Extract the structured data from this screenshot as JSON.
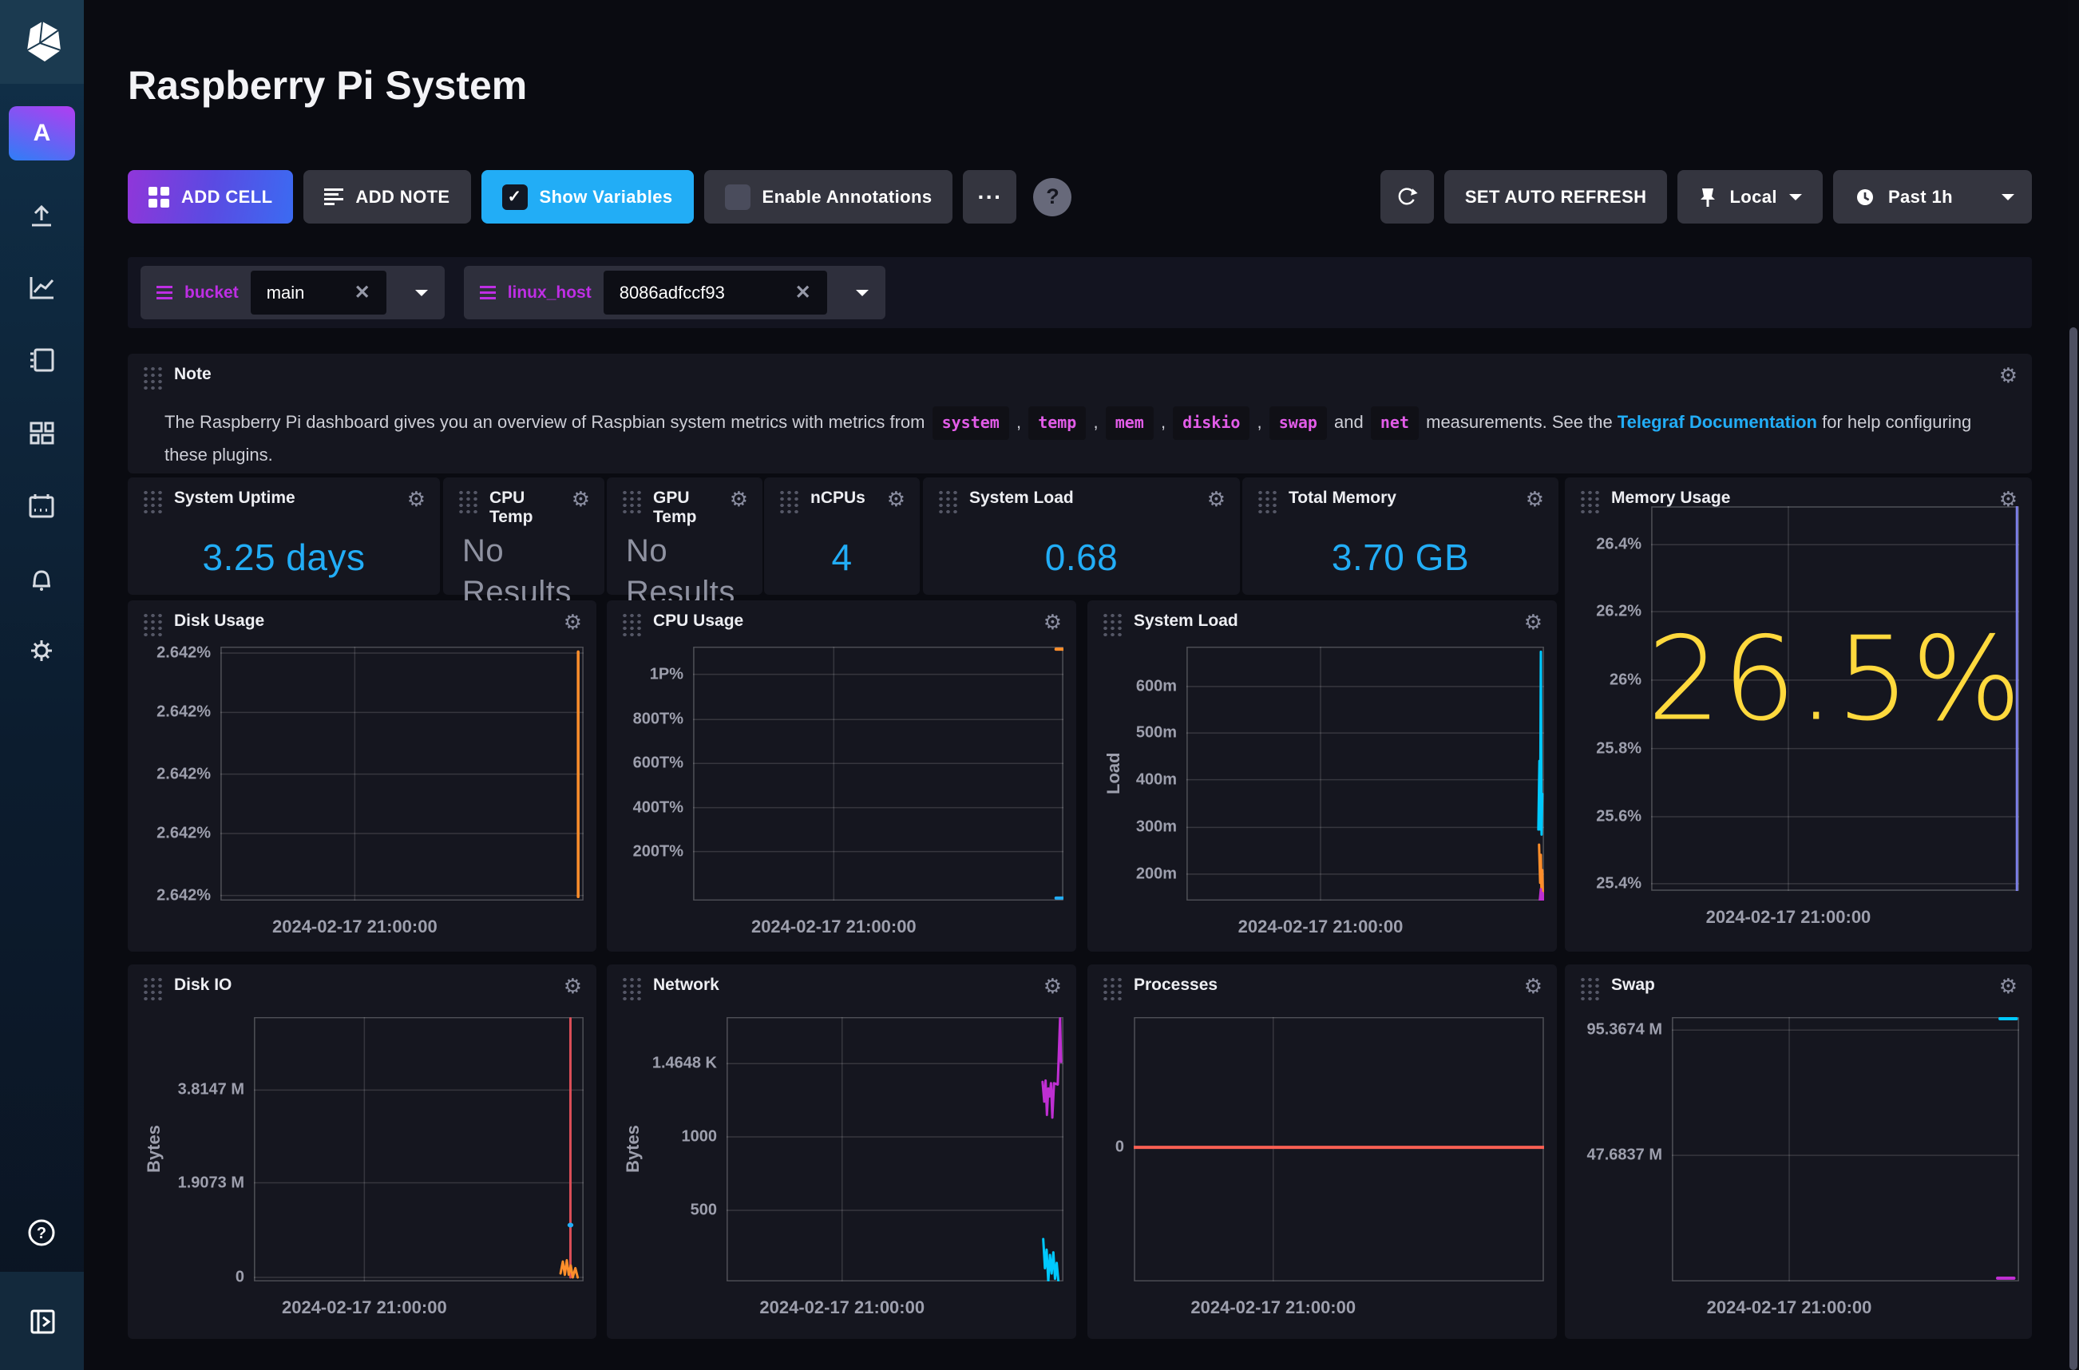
{
  "header": {
    "title": "Raspberry Pi System"
  },
  "sidebar": {
    "avatar_letter": "A"
  },
  "toolbar": {
    "add_cell": "ADD CELL",
    "add_note": "ADD NOTE",
    "show_variables": "Show Variables",
    "show_variables_checked": "✓",
    "enable_annotations": "Enable Annotations",
    "more": "···",
    "help": "?",
    "set_auto_refresh": "SET AUTO REFRESH",
    "timezone": "Local",
    "time_range": "Past 1h"
  },
  "colors": {
    "accent_blue": "#22ADF6",
    "stat_value": "#22ADF6",
    "big_value_yellow": "#FFD93D",
    "variable_purple": "#BE2EE4",
    "link_blue": "#22ADF6",
    "series_cyan": "#00C9FF",
    "series_orange": "#FF8E2B",
    "series_magenta": "#BF2FD2",
    "series_red": "#DC4E58",
    "series_lavender": "#7C7FE6",
    "series_orange_red": "#F95F53"
  },
  "variables": [
    {
      "name": "bucket",
      "value": "main"
    },
    {
      "name": "linux_host",
      "value": "8086adfccf93"
    }
  ],
  "note": {
    "parts": [
      {
        "t": "text",
        "v": "The Raspberry Pi dashboard gives you an overview of Raspbian system metrics with metrics from "
      },
      {
        "t": "code",
        "v": "system"
      },
      {
        "t": "text",
        "v": " , "
      },
      {
        "t": "code",
        "v": "temp"
      },
      {
        "t": "text",
        "v": " , "
      },
      {
        "t": "code",
        "v": "mem"
      },
      {
        "t": "text",
        "v": " , "
      },
      {
        "t": "code",
        "v": "diskio"
      },
      {
        "t": "text",
        "v": " , "
      },
      {
        "t": "code",
        "v": "swap"
      },
      {
        "t": "text",
        "v": " and "
      },
      {
        "t": "code",
        "v": "net"
      },
      {
        "t": "text",
        "v": " measurements. See the "
      },
      {
        "t": "link",
        "v": "Telegraf Documentation"
      },
      {
        "t": "text",
        "v": " for help configuring these plugins."
      }
    ]
  },
  "cells": [
    {
      "id": "note",
      "type": "note",
      "title": "Note"
    },
    {
      "id": "system_uptime",
      "type": "stat",
      "title": "System Uptime",
      "value": "3.25 days",
      "value_color": "#22ADF6"
    },
    {
      "id": "cpu_temp",
      "type": "stat",
      "title": "CPU Temp",
      "value": "No Results",
      "empty": true
    },
    {
      "id": "gpu_temp",
      "type": "stat",
      "title": "GPU Temp",
      "value": "No Results",
      "empty": true
    },
    {
      "id": "ncpus",
      "type": "stat",
      "title": "nCPUs",
      "value": "4",
      "value_color": "#22ADF6"
    },
    {
      "id": "system_load_stat",
      "type": "stat",
      "title": "System Load",
      "value": "0.68",
      "value_color": "#22ADF6"
    },
    {
      "id": "total_memory",
      "type": "stat",
      "title": "Total Memory",
      "value": "3.70 GB",
      "value_color": "#22ADF6"
    },
    {
      "id": "memory_usage",
      "type": "chart",
      "title": "Memory Usage",
      "big_value": "26.5%",
      "big_value_color": "#FFD93D",
      "chart": {
        "xlabel": "2024-02-17 21:00:00",
        "xlabel_f": 0.373,
        "vline": 0.373,
        "yticks": [
          [
            "26.4%",
            0.1
          ],
          [
            "26.2%",
            0.274
          ],
          [
            "26%",
            0.452
          ],
          [
            "25.8%",
            0.63
          ],
          [
            "25.6%",
            0.807
          ],
          [
            "25.4%",
            0.981
          ]
        ],
        "series": [
          {
            "c": "#7C7FE6",
            "w": 3,
            "p": [
              [
                0.994,
                0.0
              ],
              [
                0.994,
                1.0
              ]
            ]
          }
        ]
      }
    },
    {
      "id": "disk_usage",
      "type": "chart",
      "title": "Disk Usage",
      "chart": {
        "xlabel": "2024-02-17 21:00:00",
        "xlabel_f": 0.37,
        "vline": 0.37,
        "yticks": [
          [
            "2.642%",
            0.025
          ],
          [
            "2.642%",
            0.259
          ],
          [
            "2.642%",
            0.502
          ],
          [
            "2.642%",
            0.736
          ],
          [
            "2.642%",
            0.98
          ]
        ],
        "series": [
          {
            "c": "#FF8E2B",
            "w": 3.5,
            "p": [
              [
                0.985,
                0.02
              ],
              [
                0.985,
                0.985
              ]
            ]
          }
        ]
      }
    },
    {
      "id": "cpu_usage",
      "type": "chart",
      "title": "CPU Usage",
      "chart": {
        "xlabel": "2024-02-17 21:00:00",
        "xlabel_f": 0.38,
        "vline": 0.38,
        "yticks": [
          [
            "1P%",
            0.109
          ],
          [
            "800T%",
            0.287
          ],
          [
            "600T%",
            0.46
          ],
          [
            "400T%",
            0.634
          ],
          [
            "200T%",
            0.807
          ]
        ],
        "series": [
          {
            "c": "#FF8E2B",
            "w": 4,
            "p": [
              [
                0.98,
                0.01
              ],
              [
                0.998,
                0.01
              ]
            ]
          },
          {
            "c": "#22ADF6",
            "w": 4,
            "p": [
              [
                0.98,
                0.99
              ],
              [
                0.998,
                0.99
              ]
            ]
          }
        ]
      }
    },
    {
      "id": "system_load",
      "type": "chart",
      "title": "System Load",
      "chart": {
        "ylabel": "Load",
        "xlabel": "2024-02-17 21:00:00",
        "xlabel_f": 0.375,
        "vline": 0.375,
        "yticks": [
          [
            "600m",
            0.157
          ],
          [
            "500m",
            0.34
          ],
          [
            "400m",
            0.524
          ],
          [
            "300m",
            0.712
          ],
          [
            "200m",
            0.896
          ]
        ],
        "series": [
          {
            "c": "#00C9FF",
            "w": 3,
            "p": [
              [
                0.984,
                0.72
              ],
              [
                0.987,
                0.45
              ],
              [
                0.989,
                0.72
              ],
              [
                0.991,
                0.02
              ],
              [
                0.993,
                0.74
              ],
              [
                0.995,
                0.58
              ]
            ]
          },
          {
            "c": "#FF8E2B",
            "w": 3,
            "p": [
              [
                0.986,
                0.78
              ],
              [
                0.989,
                0.93
              ],
              [
                0.991,
                0.82
              ],
              [
                0.993,
                0.99
              ],
              [
                0.995,
                0.88
              ],
              [
                0.997,
                1.0
              ]
            ]
          },
          {
            "c": "#BF2FD2",
            "w": 3,
            "p": [
              [
                0.988,
                1.0
              ],
              [
                0.991,
                0.955
              ],
              [
                0.993,
                1.0
              ],
              [
                0.996,
                0.97
              ],
              [
                0.998,
                1.0
              ]
            ]
          }
        ]
      }
    },
    {
      "id": "disk_io",
      "type": "chart",
      "title": "Disk IO",
      "chart": {
        "ylabel": "Bytes",
        "xlabel": "2024-02-17 21:00:00",
        "xlabel_f": 0.335,
        "vline": 0.335,
        "yticks": [
          [
            "3.8147 M",
            0.276
          ],
          [
            "1.9073 M",
            0.627
          ],
          [
            "0",
            0.985
          ]
        ],
        "series": [
          {
            "c": "#DC4E58",
            "w": 3,
            "p": [
              [
                0.96,
                0.005
              ],
              [
                0.96,
                0.985
              ]
            ]
          },
          {
            "c": "#FF8E2B",
            "w": 3,
            "p": [
              [
                0.93,
                0.97
              ],
              [
                0.937,
                0.925
              ],
              [
                0.943,
                0.975
              ],
              [
                0.949,
                0.92
              ],
              [
                0.955,
                0.975
              ],
              [
                0.961,
                0.94
              ],
              [
                0.967,
                0.985
              ],
              [
                0.975,
                0.95
              ],
              [
                0.982,
                0.985
              ]
            ]
          }
        ],
        "markers": [
          {
            "c": "#22ADF6",
            "x": 0.96,
            "y": 0.787,
            "r": 9
          }
        ]
      }
    },
    {
      "id": "network",
      "type": "chart",
      "title": "Network",
      "chart": {
        "ylabel": "Bytes",
        "xlabel": "2024-02-17 21:00:00",
        "xlabel_f": 0.343,
        "vline": 0.343,
        "yticks": [
          [
            "1.4648 K",
            0.176
          ],
          [
            "1000",
            0.453
          ],
          [
            "500",
            0.731
          ]
        ],
        "series": [
          {
            "c": "#BF2FD2",
            "w": 3,
            "p": [
              [
                0.938,
                0.245
              ],
              [
                0.943,
                0.32
              ],
              [
                0.947,
                0.24
              ],
              [
                0.951,
                0.37
              ],
              [
                0.955,
                0.27
              ],
              [
                0.959,
                0.3
              ],
              [
                0.963,
                0.25
              ],
              [
                0.967,
                0.38
              ],
              [
                0.972,
                0.25
              ],
              [
                0.983,
                0.255
              ],
              [
                0.99,
                0.005
              ],
              [
                0.993,
                0.17
              ]
            ]
          },
          {
            "c": "#00C9FF",
            "w": 3,
            "p": [
              [
                0.94,
                0.84
              ],
              [
                0.945,
                0.95
              ],
              [
                0.95,
                0.88
              ],
              [
                0.955,
                1.0
              ],
              [
                0.96,
                0.9
              ],
              [
                0.965,
                0.97
              ],
              [
                0.97,
                0.89
              ],
              [
                0.975,
                0.99
              ],
              [
                0.98,
                0.93
              ],
              [
                0.985,
                1.0
              ]
            ]
          }
        ]
      }
    },
    {
      "id": "processes",
      "type": "chart",
      "title": "Processes",
      "chart": {
        "xlabel": "2024-02-17 21:00:00",
        "xlabel_f": 0.34,
        "vline": 0.34,
        "yticks": [
          [
            "0",
            0.493
          ]
        ],
        "series": [
          {
            "c": "#F95F53",
            "w": 4,
            "p": [
              [
                0.0,
                0.493
              ],
              [
                1.0,
                0.493
              ]
            ]
          }
        ]
      }
    },
    {
      "id": "swap",
      "type": "chart",
      "title": "Swap",
      "chart": {
        "xlabel": "2024-02-17 21:00:00",
        "xlabel_f": 0.338,
        "vline": 0.338,
        "yticks": [
          [
            "95.3674 M",
            0.049
          ],
          [
            "47.6837 M",
            0.523
          ]
        ],
        "series": [
          {
            "c": "#00C9FF",
            "w": 4,
            "p": [
              [
                0.945,
                0.006
              ],
              [
                0.992,
                0.006
              ]
            ]
          },
          {
            "c": "#BF2FD2",
            "w": 4,
            "p": [
              [
                0.938,
                0.988
              ],
              [
                0.985,
                0.988
              ]
            ]
          }
        ]
      }
    }
  ]
}
